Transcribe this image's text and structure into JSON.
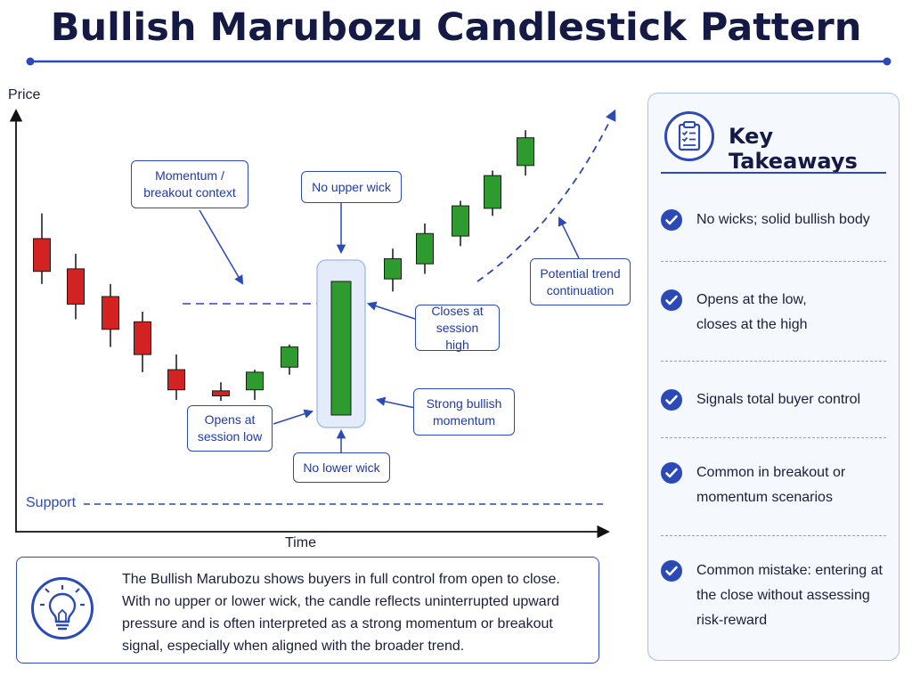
{
  "title": "Bullish Marubozu Candlestick Pattern",
  "axes": {
    "y_label": "Price",
    "x_label": "Time"
  },
  "support_label": "Support",
  "callouts": {
    "momentum": "Momentum /\nbreakout context",
    "no_upper_wick": "No upper wick",
    "closes_high": "Closes at\nsession high",
    "strong_momentum": "Strong bullish\nmomentum",
    "opens_low": "Opens at\nsession low",
    "no_lower_wick": "No lower wick",
    "trend_continuation": "Potential trend\ncontinuation"
  },
  "colors": {
    "bearish": "#d32222",
    "bullish": "#2e9b2e",
    "accent": "#2c49b8"
  },
  "candles": [
    {
      "type": "bearish",
      "open": 6.4,
      "high": 6.9,
      "low": 5.5,
      "close": 5.75
    },
    {
      "type": "bearish",
      "open": 5.8,
      "high": 6.1,
      "low": 4.8,
      "close": 5.1
    },
    {
      "type": "bearish",
      "open": 5.25,
      "high": 5.5,
      "low": 4.25,
      "close": 4.6
    },
    {
      "type": "bearish",
      "open": 4.75,
      "high": 4.95,
      "low": 3.75,
      "close": 4.1
    },
    {
      "type": "bearish",
      "open": 3.8,
      "high": 4.1,
      "low": 3.2,
      "close": 3.4
    },
    {
      "type": "bearish",
      "open": 3.38,
      "high": 3.55,
      "low": 3.18,
      "close": 3.28
    },
    {
      "type": "bullish",
      "open": 3.4,
      "high": 3.8,
      "low": 3.2,
      "close": 3.75
    },
    {
      "type": "bullish",
      "open": 3.85,
      "high": 4.3,
      "low": 3.7,
      "close": 4.25
    },
    {
      "type": "marubozu",
      "open": 2.9,
      "high": 5.55,
      "low": 2.9,
      "close": 5.55
    },
    {
      "type": "bullish",
      "open": 5.6,
      "high": 6.2,
      "low": 5.35,
      "close": 6.0
    },
    {
      "type": "bullish",
      "open": 5.9,
      "high": 6.7,
      "low": 5.7,
      "close": 6.5
    },
    {
      "type": "bullish",
      "open": 6.45,
      "high": 7.15,
      "low": 6.25,
      "close": 7.05
    },
    {
      "type": "bullish",
      "open": 7.0,
      "high": 7.75,
      "low": 6.85,
      "close": 7.65
    },
    {
      "type": "bullish",
      "open": 7.85,
      "high": 8.55,
      "low": 7.65,
      "close": 8.4
    }
  ],
  "takeaways": {
    "title": "Key Takeaways",
    "items": [
      "No wicks; solid bullish body",
      "Opens at the low,\ncloses at the high",
      "Signals total buyer control",
      "Common in breakout or\nmomentum scenarios",
      "Common mistake: entering at\nthe close without assessing\nrisk-reward"
    ]
  },
  "note": "The Bullish Marubozu shows buyers in full control from open to close. With no upper or lower wick, the candle reflects uninterrupted upward pressure and is often interpreted as a strong momentum or breakout signal, especially when aligned with the broader trend.",
  "icons": {
    "takeaways": "clipboard-checklist-icon",
    "note": "lightbulb-icon",
    "item": "check-circle-icon"
  }
}
